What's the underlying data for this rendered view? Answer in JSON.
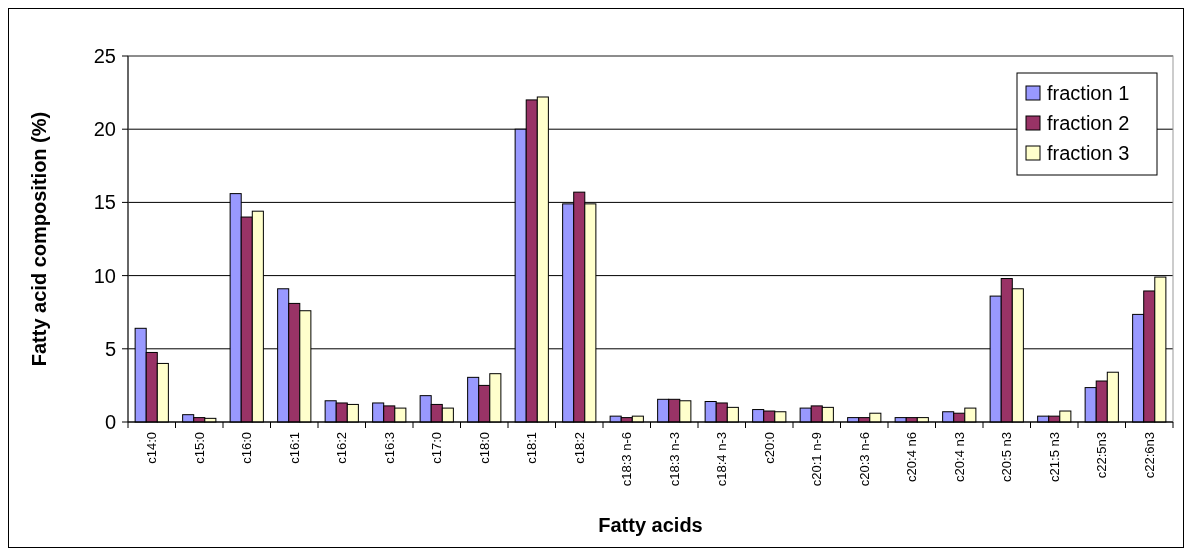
{
  "chart_data": {
    "type": "bar",
    "xlabel": "Fatty acids",
    "ylabel": "Fatty acid composition (%)",
    "categories": [
      "c14:0",
      "c15:0",
      "c16:0",
      "c16:1",
      "c16:2",
      "c16:3",
      "c17:0",
      "c18:0",
      "c18:1",
      "c18:2",
      "c18:3 n-6",
      "c18:3 n-3",
      "c18:4 n-3",
      "c20:0",
      "c20:1 n-9",
      "c20:3 n-6",
      "c20:4 n6",
      "c20:4 n3",
      "c20:5 n3",
      "c21:5 n3",
      "c22:5n3",
      "c22:6n3"
    ],
    "series": [
      {
        "name": "fraction 1",
        "color": "#9999ff",
        "values": [
          6.4,
          0.5,
          15.6,
          9.1,
          1.45,
          1.3,
          1.8,
          3.05,
          20.0,
          14.9,
          0.4,
          1.55,
          1.4,
          0.85,
          0.95,
          0.3,
          0.3,
          0.7,
          8.6,
          0.4,
          2.35,
          7.35
        ]
      },
      {
        "name": "fraction 2",
        "color": "#993366",
        "values": [
          4.75,
          0.3,
          14.0,
          8.1,
          1.3,
          1.1,
          1.2,
          2.5,
          22.0,
          15.7,
          0.3,
          1.55,
          1.3,
          0.75,
          1.1,
          0.3,
          0.3,
          0.6,
          9.8,
          0.4,
          2.8,
          8.95
        ]
      },
      {
        "name": "fraction 3",
        "color": "#ffffcc",
        "values": [
          4.0,
          0.25,
          14.4,
          7.6,
          1.2,
          0.95,
          0.95,
          3.3,
          22.2,
          14.9,
          0.4,
          1.45,
          1.0,
          0.7,
          1.0,
          0.6,
          0.3,
          0.95,
          9.1,
          0.75,
          3.4,
          9.9
        ]
      }
    ],
    "ylim": [
      0,
      25
    ],
    "yticks": [
      0,
      5,
      10,
      15,
      20,
      25
    ],
    "grid": "y",
    "legend": "top right"
  }
}
